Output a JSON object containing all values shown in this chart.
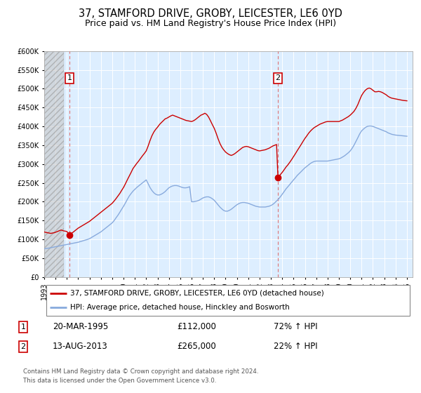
{
  "title": "37, STAMFORD DRIVE, GROBY, LEICESTER, LE6 0YD",
  "subtitle": "Price paid vs. HM Land Registry's House Price Index (HPI)",
  "ylim": [
    0,
    600000
  ],
  "yticks": [
    0,
    50000,
    100000,
    150000,
    200000,
    250000,
    300000,
    350000,
    400000,
    450000,
    500000,
    550000,
    600000
  ],
  "ytick_labels": [
    "£0",
    "£50K",
    "£100K",
    "£150K",
    "£200K",
    "£250K",
    "£300K",
    "£350K",
    "£400K",
    "£450K",
    "£500K",
    "£550K",
    "£600K"
  ],
  "xlim_start": 1993.0,
  "xlim_end": 2025.5,
  "xticks": [
    1993,
    1994,
    1995,
    1996,
    1997,
    1998,
    1999,
    2000,
    2001,
    2002,
    2003,
    2004,
    2005,
    2006,
    2007,
    2008,
    2009,
    2010,
    2011,
    2012,
    2013,
    2014,
    2015,
    2016,
    2017,
    2018,
    2019,
    2020,
    2021,
    2022,
    2023,
    2024,
    2025
  ],
  "plot_bg_color": "#ddeeff",
  "red_line_color": "#cc0000",
  "blue_line_color": "#88aadd",
  "point1_x": 1995.22,
  "point1_y": 112000,
  "point1_label": "1",
  "point1_date": "20-MAR-1995",
  "point1_price": "£112,000",
  "point1_hpi": "72% ↑ HPI",
  "point2_x": 2013.62,
  "point2_y": 265000,
  "point2_label": "2",
  "point2_date": "13-AUG-2013",
  "point2_price": "£265,000",
  "point2_hpi": "22% ↑ HPI",
  "legend_line1": "37, STAMFORD DRIVE, GROBY, LEICESTER, LE6 0YD (detached house)",
  "legend_line2": "HPI: Average price, detached house, Hinckley and Bosworth",
  "footer1": "Contains HM Land Registry data © Crown copyright and database right 2024.",
  "footer2": "This data is licensed under the Open Government Licence v3.0.",
  "title_fontsize": 10.5,
  "subtitle_fontsize": 9,
  "tick_fontsize": 7,
  "red_hpi_data": [
    [
      1993.0,
      120000
    ],
    [
      1993.08,
      119000
    ],
    [
      1993.17,
      118500
    ],
    [
      1993.25,
      118000
    ],
    [
      1993.33,
      117500
    ],
    [
      1993.42,
      117000
    ],
    [
      1993.5,
      116500
    ],
    [
      1993.58,
      116000
    ],
    [
      1993.67,
      116500
    ],
    [
      1993.75,
      117000
    ],
    [
      1993.83,
      117500
    ],
    [
      1993.92,
      118000
    ],
    [
      1994.0,
      119000
    ],
    [
      1994.08,
      120000
    ],
    [
      1994.17,
      121000
    ],
    [
      1994.25,
      122000
    ],
    [
      1994.33,
      123000
    ],
    [
      1994.42,
      124000
    ],
    [
      1994.5,
      125000
    ],
    [
      1994.58,
      124000
    ],
    [
      1994.67,
      123000
    ],
    [
      1994.75,
      122500
    ],
    [
      1994.83,
      122000
    ],
    [
      1994.92,
      121500
    ],
    [
      1995.0,
      121000
    ],
    [
      1995.22,
      112000
    ],
    [
      1995.5,
      118000
    ],
    [
      1995.67,
      122000
    ],
    [
      1995.83,
      126000
    ],
    [
      1996.0,
      130000
    ],
    [
      1996.17,
      133000
    ],
    [
      1996.33,
      136000
    ],
    [
      1996.5,
      139000
    ],
    [
      1996.67,
      142000
    ],
    [
      1996.83,
      145000
    ],
    [
      1997.0,
      148000
    ],
    [
      1997.17,
      152000
    ],
    [
      1997.33,
      156000
    ],
    [
      1997.5,
      160000
    ],
    [
      1997.67,
      164000
    ],
    [
      1997.83,
      168000
    ],
    [
      1998.0,
      172000
    ],
    [
      1998.17,
      176000
    ],
    [
      1998.33,
      180000
    ],
    [
      1998.5,
      184000
    ],
    [
      1998.67,
      188000
    ],
    [
      1998.83,
      192000
    ],
    [
      1999.0,
      196000
    ],
    [
      1999.17,
      202000
    ],
    [
      1999.33,
      208000
    ],
    [
      1999.5,
      215000
    ],
    [
      1999.67,
      222000
    ],
    [
      1999.83,
      230000
    ],
    [
      2000.0,
      238000
    ],
    [
      2000.17,
      248000
    ],
    [
      2000.33,
      258000
    ],
    [
      2000.5,
      268000
    ],
    [
      2000.67,
      278000
    ],
    [
      2000.83,
      288000
    ],
    [
      2001.0,
      295000
    ],
    [
      2001.17,
      302000
    ],
    [
      2001.33,
      308000
    ],
    [
      2001.5,
      315000
    ],
    [
      2001.67,
      322000
    ],
    [
      2001.83,
      328000
    ],
    [
      2002.0,
      335000
    ],
    [
      2002.17,
      348000
    ],
    [
      2002.33,
      362000
    ],
    [
      2002.5,
      375000
    ],
    [
      2002.67,
      385000
    ],
    [
      2002.83,
      392000
    ],
    [
      2003.0,
      398000
    ],
    [
      2003.17,
      405000
    ],
    [
      2003.33,
      410000
    ],
    [
      2003.5,
      415000
    ],
    [
      2003.67,
      420000
    ],
    [
      2003.83,
      422000
    ],
    [
      2004.0,
      425000
    ],
    [
      2004.17,
      428000
    ],
    [
      2004.33,
      430000
    ],
    [
      2004.5,
      428000
    ],
    [
      2004.67,
      426000
    ],
    [
      2004.83,
      424000
    ],
    [
      2005.0,
      422000
    ],
    [
      2005.17,
      420000
    ],
    [
      2005.33,
      418000
    ],
    [
      2005.5,
      416000
    ],
    [
      2005.67,
      415000
    ],
    [
      2005.83,
      414000
    ],
    [
      2006.0,
      413000
    ],
    [
      2006.17,
      415000
    ],
    [
      2006.33,
      418000
    ],
    [
      2006.5,
      422000
    ],
    [
      2006.67,
      426000
    ],
    [
      2006.83,
      430000
    ],
    [
      2007.0,
      432000
    ],
    [
      2007.17,
      435000
    ],
    [
      2007.33,
      432000
    ],
    [
      2007.5,
      425000
    ],
    [
      2007.67,
      415000
    ],
    [
      2007.83,
      405000
    ],
    [
      2008.0,
      395000
    ],
    [
      2008.17,
      382000
    ],
    [
      2008.33,
      368000
    ],
    [
      2008.5,
      355000
    ],
    [
      2008.67,
      345000
    ],
    [
      2008.83,
      338000
    ],
    [
      2009.0,
      332000
    ],
    [
      2009.17,
      328000
    ],
    [
      2009.33,
      325000
    ],
    [
      2009.5,
      323000
    ],
    [
      2009.67,
      325000
    ],
    [
      2009.83,
      328000
    ],
    [
      2010.0,
      332000
    ],
    [
      2010.17,
      336000
    ],
    [
      2010.33,
      340000
    ],
    [
      2010.5,
      344000
    ],
    [
      2010.67,
      346000
    ],
    [
      2010.83,
      347000
    ],
    [
      2011.0,
      346000
    ],
    [
      2011.17,
      344000
    ],
    [
      2011.33,
      342000
    ],
    [
      2011.5,
      340000
    ],
    [
      2011.67,
      338000
    ],
    [
      2011.83,
      336000
    ],
    [
      2012.0,
      335000
    ],
    [
      2012.17,
      336000
    ],
    [
      2012.33,
      337000
    ],
    [
      2012.5,
      338000
    ],
    [
      2012.67,
      340000
    ],
    [
      2012.83,
      342000
    ],
    [
      2013.0,
      345000
    ],
    [
      2013.17,
      348000
    ],
    [
      2013.33,
      350000
    ],
    [
      2013.5,
      352000
    ],
    [
      2013.62,
      265000
    ],
    [
      2013.75,
      268000
    ],
    [
      2013.83,
      272000
    ],
    [
      2014.0,
      278000
    ],
    [
      2014.17,
      285000
    ],
    [
      2014.33,
      292000
    ],
    [
      2014.5,
      298000
    ],
    [
      2014.67,
      305000
    ],
    [
      2014.83,
      312000
    ],
    [
      2015.0,
      320000
    ],
    [
      2015.17,
      328000
    ],
    [
      2015.33,
      336000
    ],
    [
      2015.5,
      344000
    ],
    [
      2015.67,
      352000
    ],
    [
      2015.83,
      360000
    ],
    [
      2016.0,
      368000
    ],
    [
      2016.17,
      375000
    ],
    [
      2016.33,
      382000
    ],
    [
      2016.5,
      388000
    ],
    [
      2016.67,
      393000
    ],
    [
      2016.83,
      397000
    ],
    [
      2017.0,
      400000
    ],
    [
      2017.17,
      403000
    ],
    [
      2017.33,
      406000
    ],
    [
      2017.5,
      408000
    ],
    [
      2017.67,
      410000
    ],
    [
      2017.83,
      412000
    ],
    [
      2018.0,
      413000
    ],
    [
      2018.17,
      413000
    ],
    [
      2018.33,
      413000
    ],
    [
      2018.5,
      413000
    ],
    [
      2018.67,
      413000
    ],
    [
      2018.83,
      413000
    ],
    [
      2019.0,
      413000
    ],
    [
      2019.17,
      415000
    ],
    [
      2019.33,
      417000
    ],
    [
      2019.5,
      420000
    ],
    [
      2019.67,
      423000
    ],
    [
      2019.83,
      426000
    ],
    [
      2020.0,
      430000
    ],
    [
      2020.17,
      435000
    ],
    [
      2020.33,
      440000
    ],
    [
      2020.5,
      448000
    ],
    [
      2020.67,
      458000
    ],
    [
      2020.83,
      470000
    ],
    [
      2021.0,
      482000
    ],
    [
      2021.17,
      490000
    ],
    [
      2021.33,
      496000
    ],
    [
      2021.5,
      500000
    ],
    [
      2021.67,
      502000
    ],
    [
      2021.83,
      500000
    ],
    [
      2022.0,
      496000
    ],
    [
      2022.17,
      492000
    ],
    [
      2022.33,
      492000
    ],
    [
      2022.5,
      493000
    ],
    [
      2022.67,
      492000
    ],
    [
      2022.83,
      490000
    ],
    [
      2023.0,
      487000
    ],
    [
      2023.17,
      484000
    ],
    [
      2023.33,
      480000
    ],
    [
      2023.5,
      477000
    ],
    [
      2023.67,
      475000
    ],
    [
      2023.83,
      474000
    ],
    [
      2024.0,
      473000
    ],
    [
      2024.17,
      472000
    ],
    [
      2024.33,
      471000
    ],
    [
      2024.5,
      470000
    ],
    [
      2024.67,
      469000
    ],
    [
      2024.83,
      468500
    ],
    [
      2025.0,
      468000
    ]
  ],
  "blue_hpi_data": [
    [
      1993.0,
      75000
    ],
    [
      1993.08,
      75500
    ],
    [
      1993.17,
      76000
    ],
    [
      1993.25,
      76200
    ],
    [
      1993.33,
      76500
    ],
    [
      1993.42,
      77000
    ],
    [
      1993.5,
      77500
    ],
    [
      1993.58,
      78000
    ],
    [
      1993.67,
      78500
    ],
    [
      1993.75,
      79000
    ],
    [
      1993.83,
      79500
    ],
    [
      1993.92,
      80000
    ],
    [
      1994.0,
      80500
    ],
    [
      1994.08,
      81000
    ],
    [
      1994.17,
      81500
    ],
    [
      1994.25,
      82000
    ],
    [
      1994.33,
      82500
    ],
    [
      1994.42,
      83000
    ],
    [
      1994.5,
      83500
    ],
    [
      1994.58,
      84000
    ],
    [
      1994.67,
      84500
    ],
    [
      1994.75,
      85000
    ],
    [
      1994.83,
      85500
    ],
    [
      1994.92,
      86000
    ],
    [
      1995.0,
      86500
    ],
    [
      1995.17,
      87500
    ],
    [
      1995.33,
      88500
    ],
    [
      1995.5,
      89500
    ],
    [
      1995.67,
      90500
    ],
    [
      1995.83,
      91500
    ],
    [
      1996.0,
      92500
    ],
    [
      1996.17,
      94000
    ],
    [
      1996.33,
      95500
    ],
    [
      1996.5,
      97000
    ],
    [
      1996.67,
      98500
    ],
    [
      1996.83,
      100000
    ],
    [
      1997.0,
      102000
    ],
    [
      1997.17,
      105000
    ],
    [
      1997.33,
      108000
    ],
    [
      1997.5,
      111000
    ],
    [
      1997.67,
      114000
    ],
    [
      1997.83,
      117000
    ],
    [
      1998.0,
      120000
    ],
    [
      1998.17,
      124000
    ],
    [
      1998.33,
      128000
    ],
    [
      1998.5,
      132000
    ],
    [
      1998.67,
      136000
    ],
    [
      1998.83,
      140000
    ],
    [
      1999.0,
      144000
    ],
    [
      1999.17,
      150000
    ],
    [
      1999.33,
      157000
    ],
    [
      1999.5,
      164000
    ],
    [
      1999.67,
      172000
    ],
    [
      1999.83,
      180000
    ],
    [
      2000.0,
      188000
    ],
    [
      2000.17,
      197000
    ],
    [
      2000.33,
      206000
    ],
    [
      2000.5,
      215000
    ],
    [
      2000.67,
      222000
    ],
    [
      2000.83,
      228000
    ],
    [
      2001.0,
      233000
    ],
    [
      2001.17,
      238000
    ],
    [
      2001.33,
      242000
    ],
    [
      2001.5,
      246000
    ],
    [
      2001.67,
      250000
    ],
    [
      2001.83,
      254000
    ],
    [
      2002.0,
      258000
    ],
    [
      2002.17,
      248000
    ],
    [
      2002.33,
      238000
    ],
    [
      2002.5,
      230000
    ],
    [
      2002.67,
      224000
    ],
    [
      2002.83,
      220000
    ],
    [
      2003.0,
      218000
    ],
    [
      2003.17,
      218000
    ],
    [
      2003.33,
      220000
    ],
    [
      2003.5,
      223000
    ],
    [
      2003.67,
      227000
    ],
    [
      2003.83,
      232000
    ],
    [
      2004.0,
      237000
    ],
    [
      2004.17,
      240000
    ],
    [
      2004.33,
      242000
    ],
    [
      2004.5,
      243000
    ],
    [
      2004.67,
      243000
    ],
    [
      2004.83,
      242000
    ],
    [
      2005.0,
      240000
    ],
    [
      2005.17,
      238000
    ],
    [
      2005.33,
      237000
    ],
    [
      2005.5,
      237000
    ],
    [
      2005.67,
      238000
    ],
    [
      2005.83,
      240000
    ],
    [
      2006.0,
      200000
    ],
    [
      2006.17,
      200000
    ],
    [
      2006.33,
      201000
    ],
    [
      2006.5,
      202000
    ],
    [
      2006.67,
      204000
    ],
    [
      2006.83,
      207000
    ],
    [
      2007.0,
      210000
    ],
    [
      2007.17,
      212000
    ],
    [
      2007.33,
      213000
    ],
    [
      2007.5,
      213000
    ],
    [
      2007.67,
      211000
    ],
    [
      2007.83,
      208000
    ],
    [
      2008.0,
      204000
    ],
    [
      2008.17,
      198000
    ],
    [
      2008.33,
      192000
    ],
    [
      2008.5,
      186000
    ],
    [
      2008.67,
      181000
    ],
    [
      2008.83,
      177000
    ],
    [
      2009.0,
      175000
    ],
    [
      2009.17,
      175000
    ],
    [
      2009.33,
      177000
    ],
    [
      2009.5,
      180000
    ],
    [
      2009.67,
      184000
    ],
    [
      2009.83,
      188000
    ],
    [
      2010.0,
      192000
    ],
    [
      2010.17,
      195000
    ],
    [
      2010.33,
      197000
    ],
    [
      2010.5,
      198000
    ],
    [
      2010.67,
      198000
    ],
    [
      2010.83,
      197000
    ],
    [
      2011.0,
      196000
    ],
    [
      2011.17,
      194000
    ],
    [
      2011.33,
      192000
    ],
    [
      2011.5,
      190000
    ],
    [
      2011.67,
      188000
    ],
    [
      2011.83,
      187000
    ],
    [
      2012.0,
      186000
    ],
    [
      2012.17,
      186000
    ],
    [
      2012.33,
      186000
    ],
    [
      2012.5,
      186000
    ],
    [
      2012.67,
      187000
    ],
    [
      2012.83,
      188000
    ],
    [
      2013.0,
      190000
    ],
    [
      2013.17,
      193000
    ],
    [
      2013.33,
      197000
    ],
    [
      2013.5,
      202000
    ],
    [
      2013.67,
      207000
    ],
    [
      2013.83,
      213000
    ],
    [
      2014.0,
      220000
    ],
    [
      2014.17,
      227000
    ],
    [
      2014.33,
      234000
    ],
    [
      2014.5,
      240000
    ],
    [
      2014.67,
      246000
    ],
    [
      2014.83,
      252000
    ],
    [
      2015.0,
      258000
    ],
    [
      2015.17,
      264000
    ],
    [
      2015.33,
      270000
    ],
    [
      2015.5,
      275000
    ],
    [
      2015.67,
      280000
    ],
    [
      2015.83,
      285000
    ],
    [
      2016.0,
      290000
    ],
    [
      2016.17,
      294000
    ],
    [
      2016.33,
      298000
    ],
    [
      2016.5,
      302000
    ],
    [
      2016.67,
      305000
    ],
    [
      2016.83,
      307000
    ],
    [
      2017.0,
      308000
    ],
    [
      2017.17,
      308000
    ],
    [
      2017.33,
      308000
    ],
    [
      2017.5,
      308000
    ],
    [
      2017.67,
      308000
    ],
    [
      2017.83,
      308000
    ],
    [
      2018.0,
      308000
    ],
    [
      2018.17,
      309000
    ],
    [
      2018.33,
      310000
    ],
    [
      2018.5,
      311000
    ],
    [
      2018.67,
      312000
    ],
    [
      2018.83,
      313000
    ],
    [
      2019.0,
      314000
    ],
    [
      2019.17,
      316000
    ],
    [
      2019.33,
      319000
    ],
    [
      2019.5,
      322000
    ],
    [
      2019.67,
      326000
    ],
    [
      2019.83,
      330000
    ],
    [
      2020.0,
      335000
    ],
    [
      2020.17,
      342000
    ],
    [
      2020.33,
      350000
    ],
    [
      2020.5,
      360000
    ],
    [
      2020.67,
      370000
    ],
    [
      2020.83,
      380000
    ],
    [
      2021.0,
      388000
    ],
    [
      2021.17,
      393000
    ],
    [
      2021.33,
      397000
    ],
    [
      2021.5,
      400000
    ],
    [
      2021.67,
      401000
    ],
    [
      2021.83,
      401000
    ],
    [
      2022.0,
      400000
    ],
    [
      2022.17,
      398000
    ],
    [
      2022.33,
      396000
    ],
    [
      2022.5,
      394000
    ],
    [
      2022.67,
      392000
    ],
    [
      2022.83,
      390000
    ],
    [
      2023.0,
      388000
    ],
    [
      2023.17,
      386000
    ],
    [
      2023.33,
      383000
    ],
    [
      2023.5,
      381000
    ],
    [
      2023.67,
      379000
    ],
    [
      2023.83,
      378000
    ],
    [
      2024.0,
      377000
    ],
    [
      2024.17,
      376500
    ],
    [
      2024.33,
      376000
    ],
    [
      2024.5,
      375500
    ],
    [
      2024.67,
      375000
    ],
    [
      2024.83,
      374500
    ],
    [
      2025.0,
      374000
    ]
  ]
}
